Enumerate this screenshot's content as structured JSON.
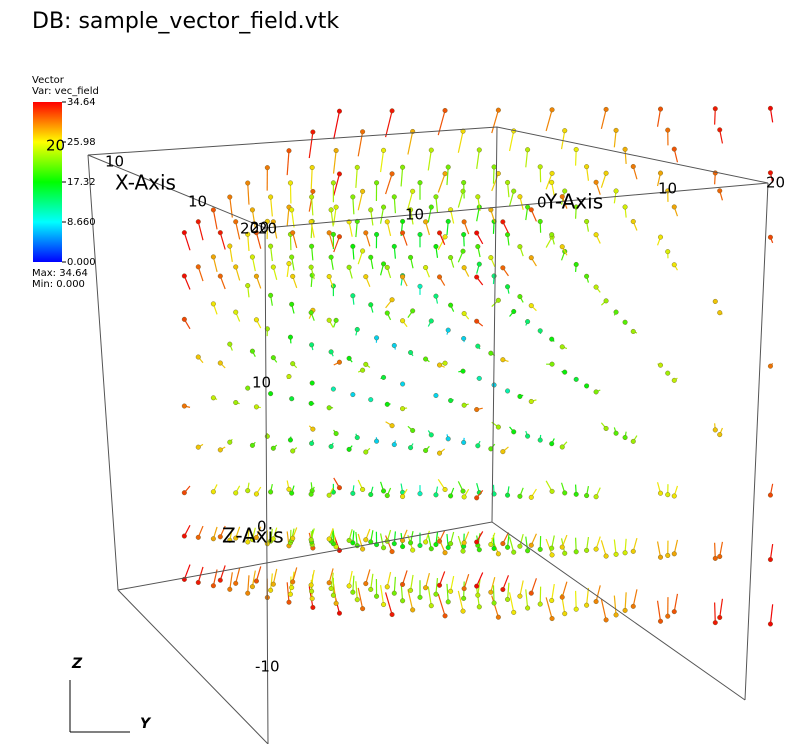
{
  "title": "DB: sample_vector_field.vtk",
  "legend": {
    "title": "Vector",
    "variable": "Var: vec_field",
    "labels": [
      "34.64",
      "25.98",
      "17.32",
      "8.660",
      "0.000"
    ],
    "max": "Max: 34.64",
    "min": "Min: 0.000"
  },
  "axes": {
    "x": {
      "title": "X-Axis",
      "ticks": [
        "20",
        "10",
        "10",
        "20"
      ]
    },
    "y": {
      "title": "Y-Axis",
      "ticks": [
        "20",
        "10",
        "0",
        "10",
        "20"
      ]
    },
    "z": {
      "title": "Z-Axis",
      "ticks": [
        "20",
        "10",
        "0",
        "-10"
      ]
    }
  },
  "triad": {
    "z": "Z",
    "y": "Y"
  }
}
